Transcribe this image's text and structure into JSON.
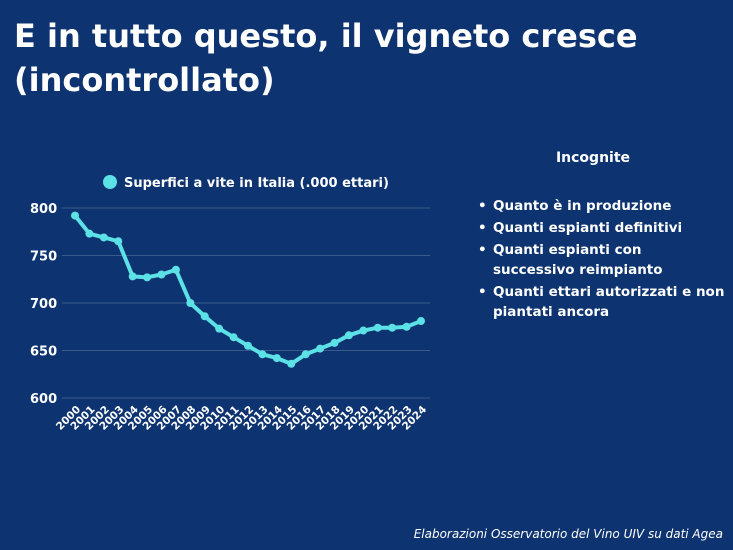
{
  "title": "E in tutto questo, il vigneto cresce (incontrollato)",
  "sidebar": {
    "heading": "Incognite",
    "items": [
      "Quanto è in produzione",
      "Quanti espianti definitivi",
      "Quanti espianti con successivo reimpianto",
      "Quanti ettari autorizzati e non piantati ancora"
    ]
  },
  "source": "Elaborazioni Osservatorio del Vino UIV su dati Agea",
  "colors": {
    "background": "#0d3470",
    "series": "#5ce1e6",
    "grid": "#3a5a8c"
  },
  "chart_data": {
    "type": "line",
    "title": "",
    "xlabel": "",
    "ylabel": "",
    "legend_position": "top",
    "grid": true,
    "ylim": [
      600,
      800
    ],
    "yticks": [
      600,
      650,
      700,
      750,
      800
    ],
    "categories": [
      "2000",
      "2001",
      "2002",
      "2003",
      "2004",
      "2005",
      "2006",
      "2007",
      "2008",
      "2009",
      "2010",
      "2011",
      "2012",
      "2013",
      "2014",
      "2015",
      "2016",
      "2017",
      "2018",
      "2019",
      "2020",
      "2021",
      "2022",
      "2023",
      "2024"
    ],
    "series": [
      {
        "name": "Superfici a vite in Italia (.000 ettari)",
        "values": [
          792,
          773,
          769,
          765,
          728,
          727,
          730,
          735,
          700,
          686,
          673,
          664,
          655,
          646,
          642,
          636,
          646,
          652,
          658,
          666,
          671,
          674,
          674,
          675,
          681
        ]
      }
    ]
  }
}
